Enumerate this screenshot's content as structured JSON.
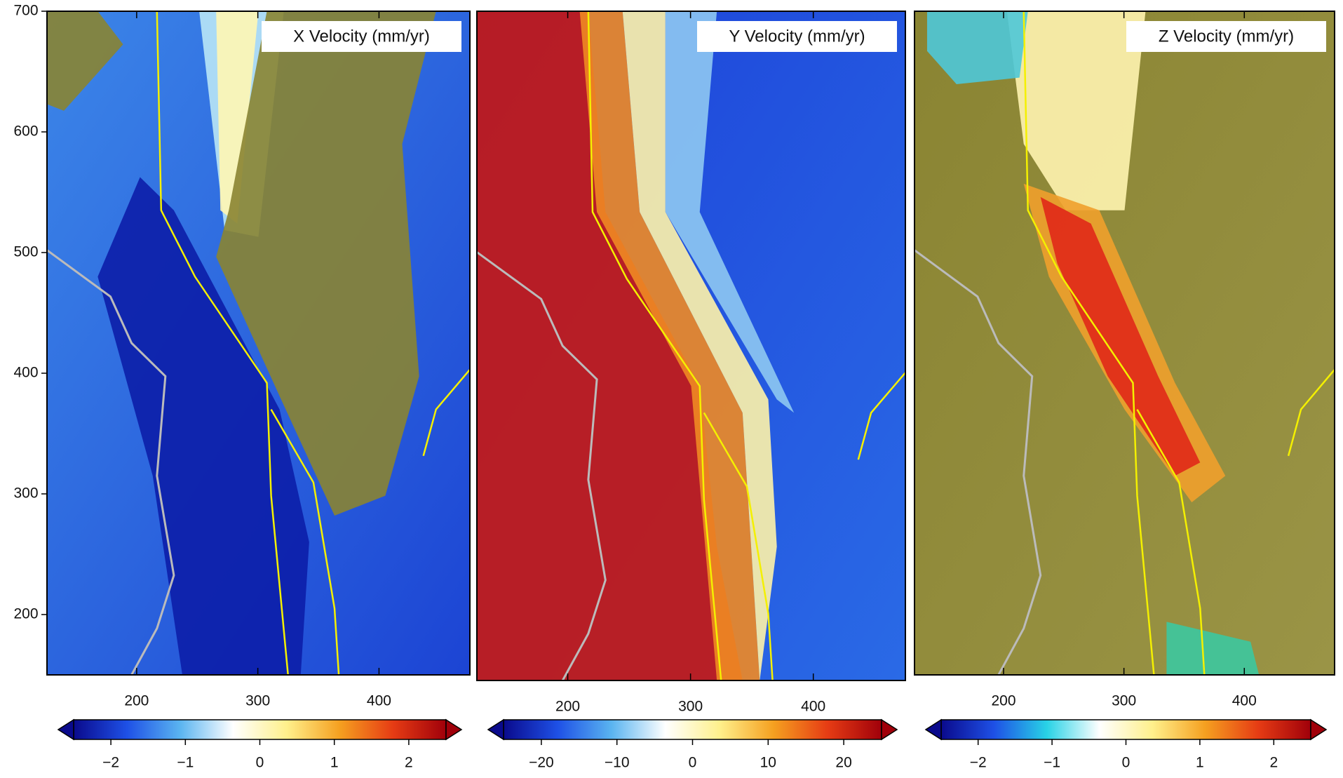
{
  "chart_data": [
    {
      "type": "map",
      "title": "X Velocity (mm/yr)",
      "xlim": [
        126,
        475
      ],
      "xticks": [
        200,
        300,
        400
      ],
      "ylim": [
        150,
        700
      ],
      "yticks": [
        200,
        300,
        400,
        500,
        600,
        700
      ],
      "colorbar": {
        "clim": [
          -2.5,
          2.5
        ],
        "ticks": [
          {
            "value": -2,
            "label": "−2"
          },
          {
            "value": -1,
            "label": "−1"
          },
          0,
          1,
          2
        ],
        "colors": [
          "#0a0a8c",
          "#1e50e6",
          "#5ab4f0",
          "#ffffff",
          "#fff08c",
          "#f5a020",
          "#e63c14",
          "#a0000a"
        ]
      }
    },
    {
      "type": "map",
      "title": "Y Velocity (mm/yr)",
      "xlim": [
        126,
        475
      ],
      "xticks": [
        200,
        300,
        400
      ],
      "ylim": [
        150,
        700
      ],
      "colorbar": {
        "clim": [
          -25,
          25
        ],
        "ticks": [
          {
            "value": -20,
            "label": "−20"
          },
          {
            "value": -10,
            "label": "−10"
          },
          0,
          10,
          20
        ],
        "colors": [
          "#0a0a8c",
          "#1e50e6",
          "#5ab4f0",
          "#ffffff",
          "#fff08c",
          "#f5a020",
          "#e63c14",
          "#a0000a"
        ]
      }
    },
    {
      "type": "map",
      "title": "Z Velocity (mm/yr)",
      "xlim": [
        126,
        475
      ],
      "xticks": [
        200,
        300,
        400
      ],
      "ylim": [
        150,
        700
      ],
      "colorbar": {
        "clim": [
          -2.5,
          2.5
        ],
        "ticks": [
          {
            "value": -2,
            "label": "−2"
          },
          {
            "value": -1,
            "label": "−1"
          },
          0,
          1,
          2
        ],
        "colors": [
          "#0a0a8c",
          "#1e50e6",
          "#28d2e6",
          "#ffffff",
          "#fff08c",
          "#f5a020",
          "#e63c14",
          "#a0000a"
        ]
      }
    }
  ]
}
